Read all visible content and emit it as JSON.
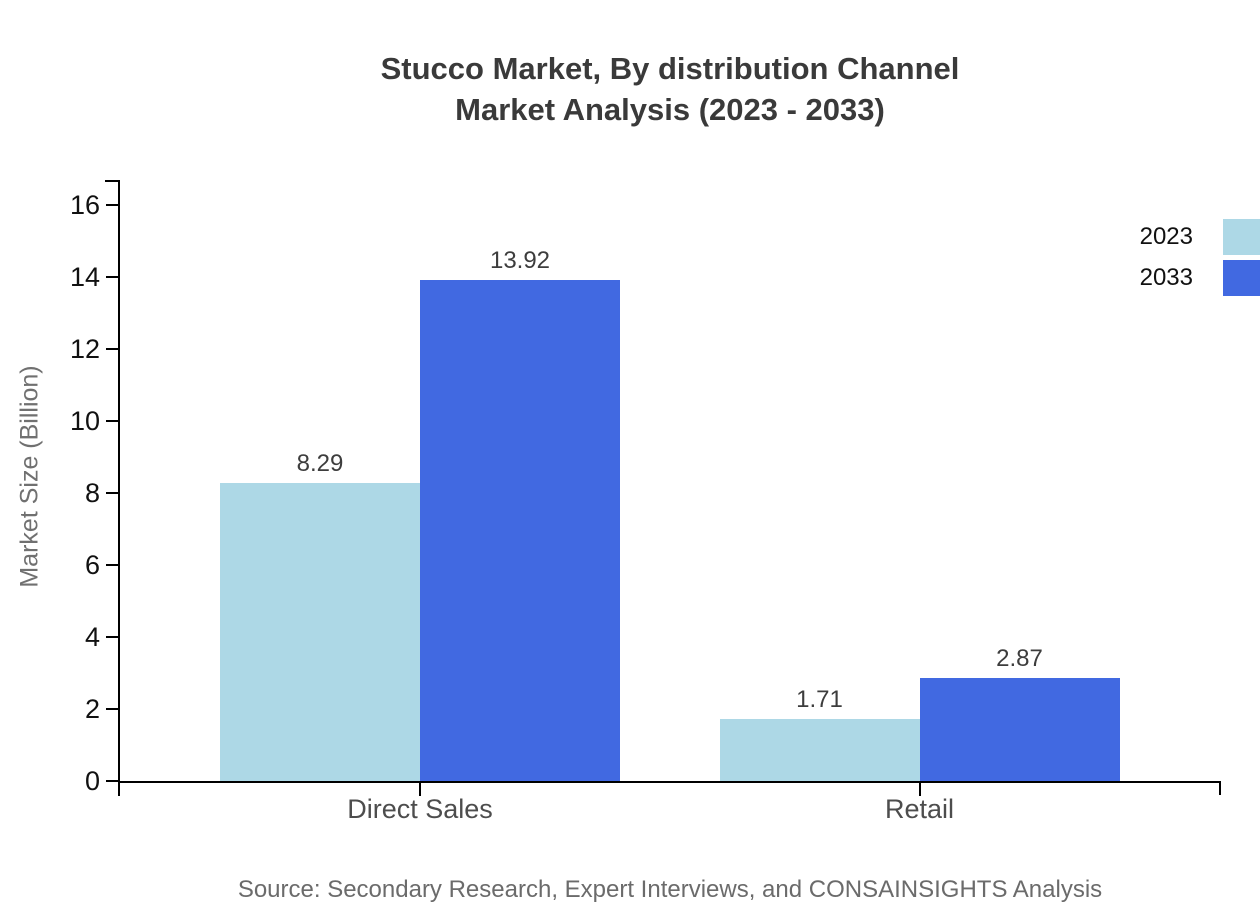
{
  "title": {
    "line1": "Stucco Market, By distribution Channel",
    "line2": "Market Analysis (2023 - 2033)"
  },
  "source": "Source: Secondary Research, Expert Interviews, and CONSAINSIGHTS Analysis",
  "chart_data": {
    "type": "bar",
    "categories": [
      "Direct Sales",
      "Retail"
    ],
    "series": [
      {
        "name": "2023",
        "color": "#ADD8E6",
        "values": [
          8.29,
          1.71
        ]
      },
      {
        "name": "2033",
        "color": "#4169E1",
        "values": [
          13.92,
          2.87
        ]
      }
    ],
    "data_labels": [
      "8.29",
      "13.92",
      "1.71",
      "2.87"
    ],
    "ylabel": "Market Size (Billion)",
    "xlabel": "",
    "ylim": [
      0,
      16
    ],
    "yticks": [
      0,
      2,
      4,
      6,
      8,
      10,
      12,
      14,
      16
    ],
    "grid": false,
    "legend_position": "top-right",
    "axis_color": "#000000",
    "tick_label_color": "#111111",
    "category_label_color": "#4d4d4d",
    "value_label_color": "#3d3d3d",
    "title_color": "#3a3a3a",
    "source_color": "#6b6b6b"
  }
}
